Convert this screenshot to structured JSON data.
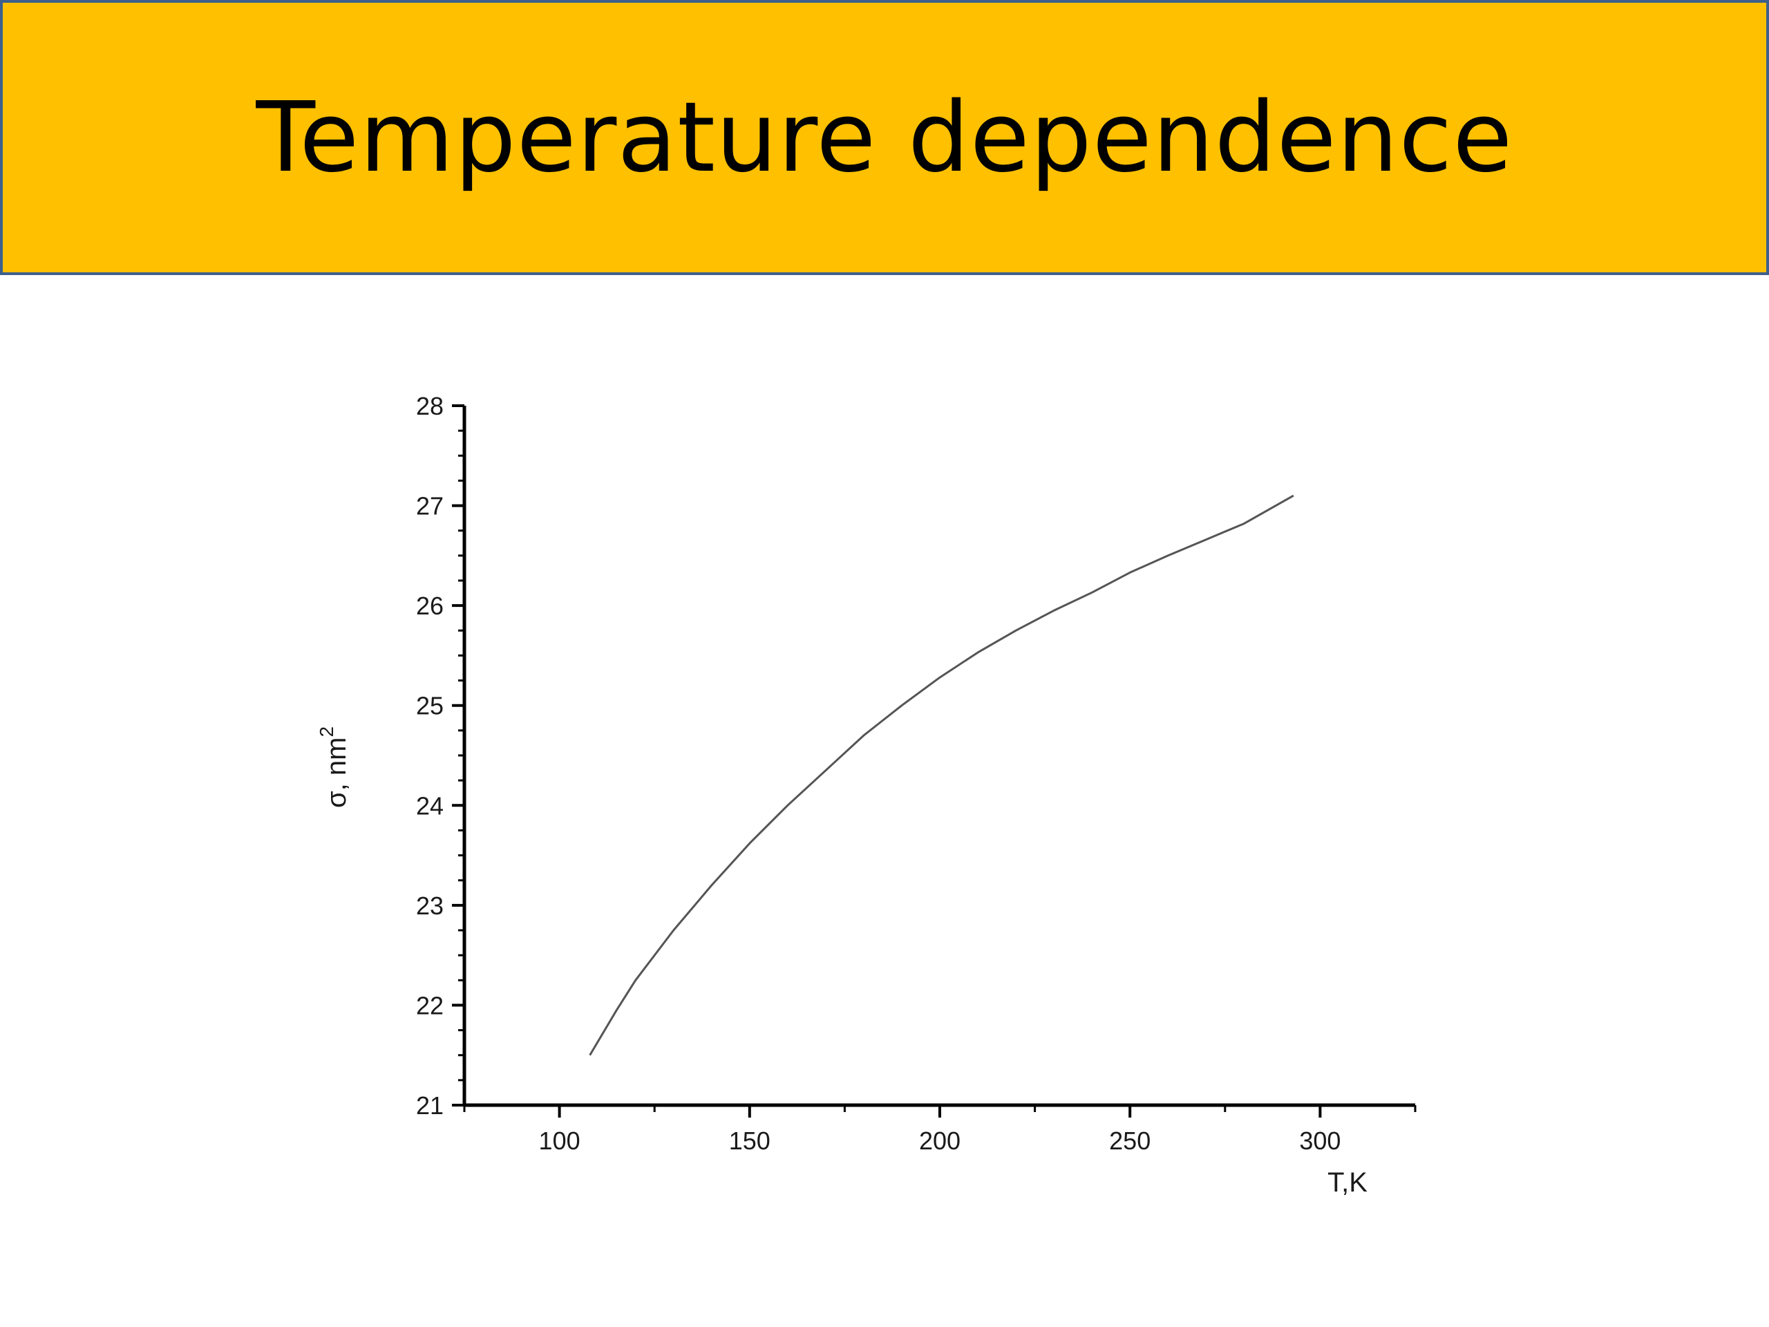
{
  "slide": {
    "title": "Temperature dependence",
    "banner_color": "#FFC000",
    "banner_border_color": "#3D5F8C"
  },
  "chart_data": {
    "type": "line",
    "xlabel": "T,K",
    "ylabel_base": "σ, nm",
    "ylabel_superscript": "2",
    "xlim": [
      75,
      325
    ],
    "ylim": [
      21,
      28
    ],
    "x_ticks": [
      100,
      150,
      200,
      250,
      300
    ],
    "y_ticks": [
      21,
      22,
      23,
      24,
      25,
      26,
      27,
      28
    ],
    "grid": false,
    "line_color": "#555555",
    "series": [
      {
        "x": [
          108,
          115,
          120,
          130,
          140,
          150,
          160,
          170,
          180,
          190,
          200,
          210,
          220,
          230,
          240,
          250,
          260,
          270,
          280,
          293
        ],
        "y": [
          21.5,
          21.95,
          22.25,
          22.75,
          23.2,
          23.62,
          24.0,
          24.35,
          24.7,
          25.0,
          25.28,
          25.53,
          25.75,
          25.95,
          26.13,
          26.33,
          26.5,
          26.66,
          26.82,
          27.1
        ]
      }
    ]
  }
}
